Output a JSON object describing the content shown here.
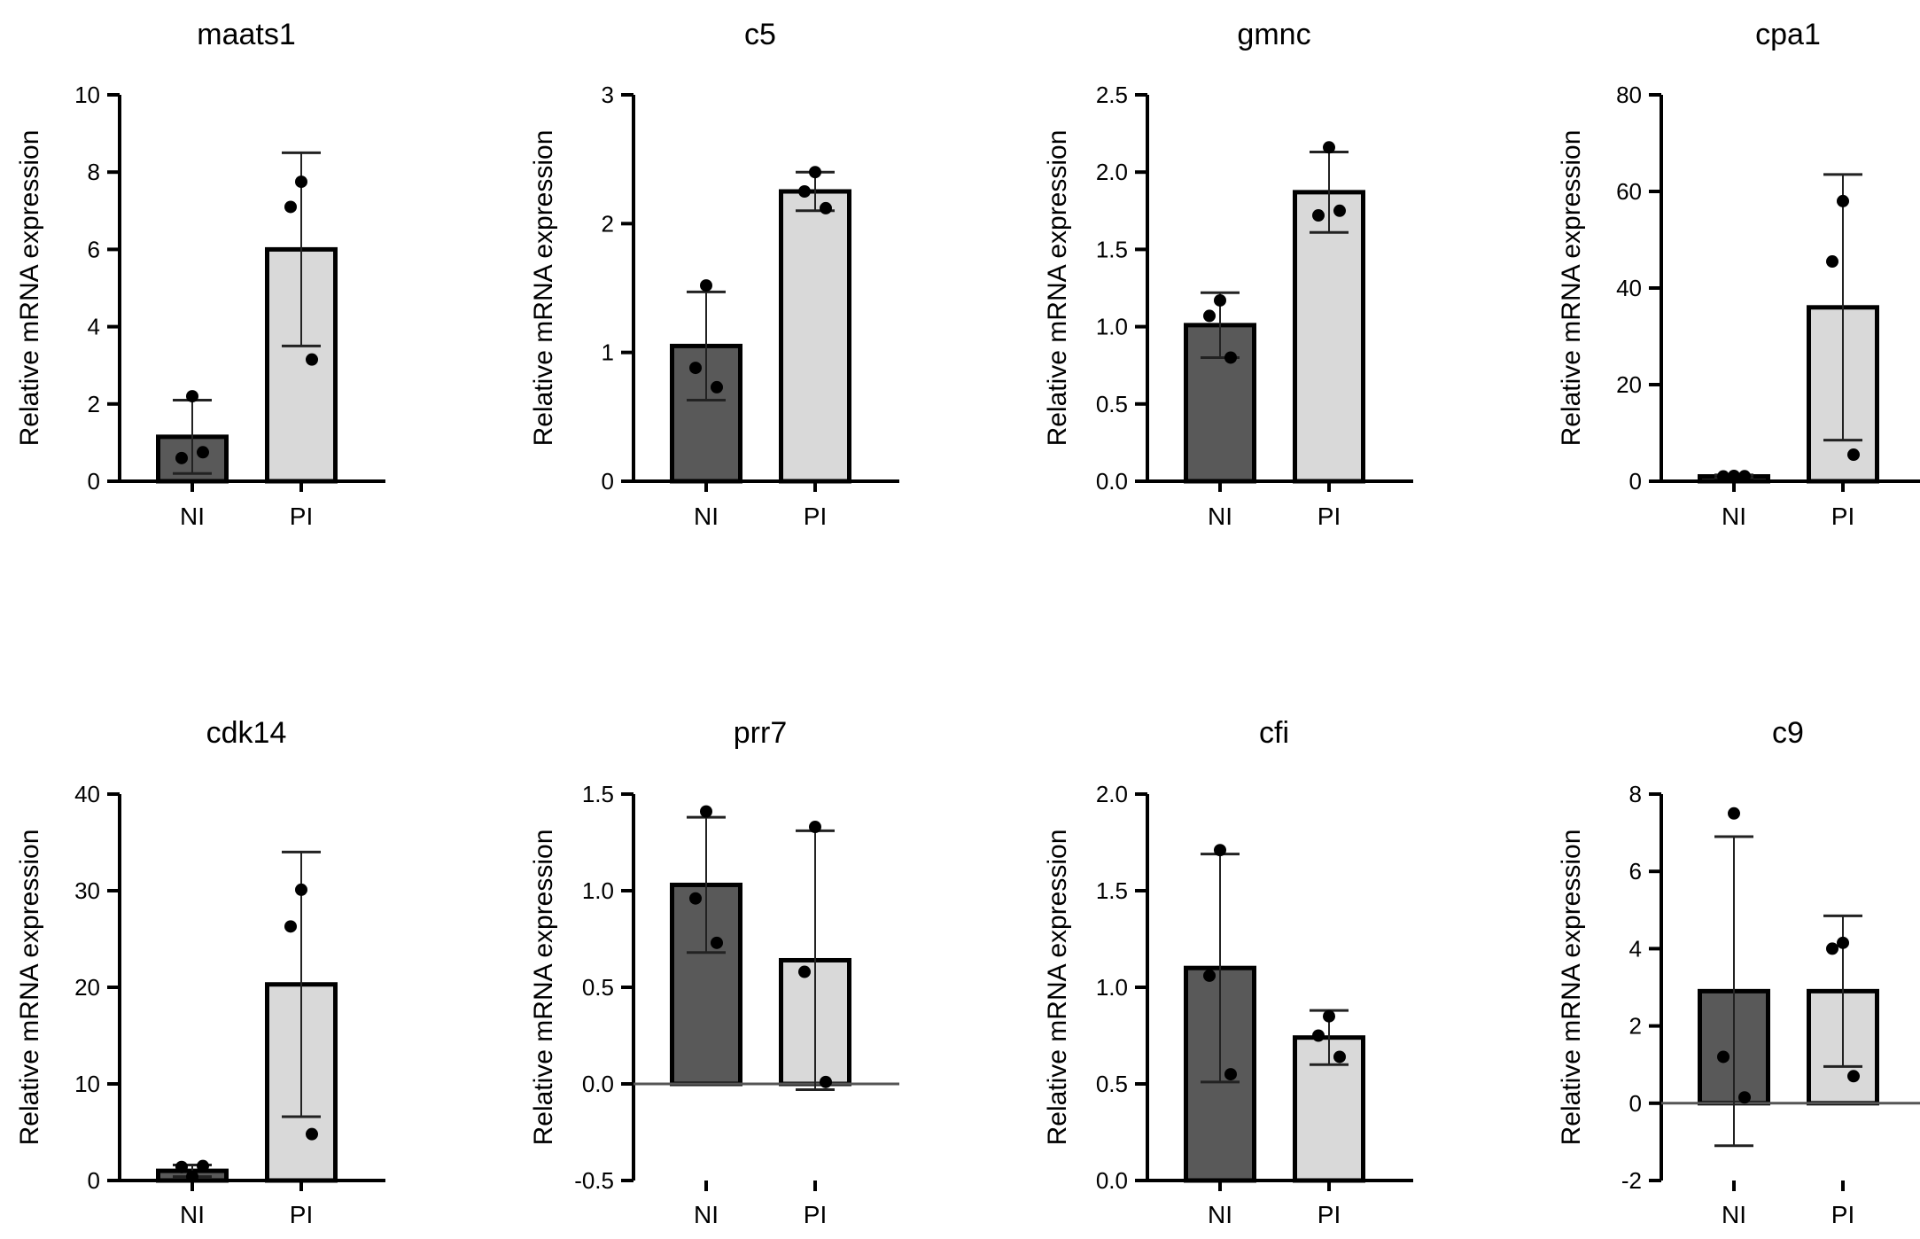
{
  "colors": {
    "ni_bar": "#595959",
    "pi_bar": "#d9d9d9",
    "axis": "#000000",
    "background": "#ffffff"
  },
  "chart_data": [
    {
      "type": "bar",
      "title": "maats1",
      "ylabel": "Relative mRNA expression",
      "categories": [
        "NI",
        "PI"
      ],
      "ylim": [
        0,
        10
      ],
      "yticks": [
        0,
        2,
        4,
        6,
        8,
        10
      ],
      "ytick_labels": [
        "0",
        "2",
        "4",
        "6",
        "8",
        "10"
      ],
      "values": [
        1.15,
        6.0
      ],
      "errors": [
        0.95,
        2.5
      ],
      "points": [
        [
          2.2,
          0.6,
          0.75
        ],
        [
          7.75,
          7.1,
          3.15
        ]
      ]
    },
    {
      "type": "bar",
      "title": "c5",
      "ylabel": "Relative mRNA expression",
      "categories": [
        "NI",
        "PI"
      ],
      "ylim": [
        0,
        3
      ],
      "yticks": [
        0,
        1,
        2,
        3
      ],
      "ytick_labels": [
        "0",
        "1",
        "2",
        "3"
      ],
      "values": [
        1.05,
        2.25
      ],
      "errors": [
        0.42,
        0.15
      ],
      "points": [
        [
          1.52,
          0.88,
          0.73
        ],
        [
          2.4,
          2.25,
          2.12
        ]
      ]
    },
    {
      "type": "bar",
      "title": "gmnc",
      "ylabel": "Relative mRNA expression",
      "categories": [
        "NI",
        "PI"
      ],
      "ylim": [
        0,
        2.5
      ],
      "yticks": [
        0,
        0.5,
        1.0,
        1.5,
        2.0,
        2.5
      ],
      "ytick_labels": [
        "0.0",
        "0.5",
        "1.0",
        "1.5",
        "2.0",
        "2.5"
      ],
      "values": [
        1.01,
        1.87
      ],
      "errors": [
        0.21,
        0.26
      ],
      "points": [
        [
          1.17,
          1.07,
          0.8
        ],
        [
          2.16,
          1.72,
          1.75
        ]
      ]
    },
    {
      "type": "bar",
      "title": "cpa1",
      "ylabel": "Relative mRNA expression",
      "categories": [
        "NI",
        "PI"
      ],
      "ylim": [
        0,
        80
      ],
      "yticks": [
        0,
        20,
        40,
        60,
        80
      ],
      "ytick_labels": [
        "0",
        "20",
        "40",
        "60",
        "80"
      ],
      "values": [
        1.0,
        36.0
      ],
      "errors": [
        0.3,
        27.5
      ],
      "points": [
        [
          1.1,
          1.0,
          1.05
        ],
        [
          58,
          45.5,
          5.5
        ]
      ]
    },
    {
      "type": "bar",
      "title": "cdk14",
      "ylabel": "Relative mRNA expression",
      "categories": [
        "NI",
        "PI"
      ],
      "ylim": [
        0,
        40
      ],
      "yticks": [
        0,
        10,
        20,
        30,
        40
      ],
      "ytick_labels": [
        "0",
        "10",
        "20",
        "30",
        "40"
      ],
      "values": [
        1.0,
        20.3
      ],
      "errors": [
        0.6,
        13.7
      ],
      "points": [
        [
          0.4,
          1.4,
          1.5
        ],
        [
          30.1,
          26.3,
          4.8
        ]
      ]
    },
    {
      "type": "bar",
      "title": "prr7",
      "ylabel": "Relative mRNA expression",
      "categories": [
        "NI",
        "PI"
      ],
      "ylim": [
        -0.5,
        1.5
      ],
      "yticks": [
        -0.5,
        0,
        0.5,
        1.0,
        1.5
      ],
      "ytick_labels": [
        "-0.5",
        "0.0",
        "0.5",
        "1.0",
        "1.5"
      ],
      "values": [
        1.03,
        0.64
      ],
      "errors": [
        0.35,
        0.67
      ],
      "points": [
        [
          1.41,
          0.96,
          0.73
        ],
        [
          1.33,
          0.58,
          0.01
        ]
      ]
    },
    {
      "type": "bar",
      "title": "cfi",
      "ylabel": "Relative mRNA expression",
      "categories": [
        "NI",
        "PI"
      ],
      "ylim": [
        0,
        2.0
      ],
      "yticks": [
        0,
        0.5,
        1.0,
        1.5,
        2.0
      ],
      "ytick_labels": [
        "0.0",
        "0.5",
        "1.0",
        "1.5",
        "2.0"
      ],
      "values": [
        1.1,
        0.74
      ],
      "errors": [
        0.59,
        0.14
      ],
      "points": [
        [
          1.71,
          1.06,
          0.55
        ],
        [
          0.85,
          0.75,
          0.64
        ]
      ]
    },
    {
      "type": "bar",
      "title": "c9",
      "ylabel": "Relative mRNA expression",
      "categories": [
        "NI",
        "PI"
      ],
      "ylim": [
        -2,
        8
      ],
      "yticks": [
        -2,
        0,
        2,
        4,
        6,
        8
      ],
      "ytick_labels": [
        "-2",
        "0",
        "2",
        "4",
        "6",
        "8"
      ],
      "values": [
        2.9,
        2.9
      ],
      "errors": [
        4.0,
        1.95
      ],
      "points": [
        [
          7.5,
          1.2,
          0.15
        ],
        [
          4.15,
          4.0,
          0.7
        ]
      ]
    }
  ]
}
